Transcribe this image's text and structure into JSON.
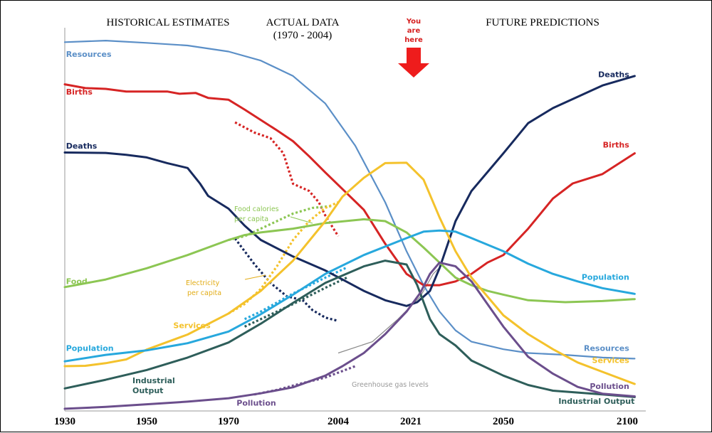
{
  "headers": {
    "historical": "HISTORICAL ESTIMATES",
    "actual_line1": "ACTUAL DATA",
    "actual_line2": "(1970 - 2004)",
    "future": "FUTURE PREDICTIONS",
    "you_are_here": [
      "You",
      "are",
      "here"
    ]
  },
  "colors": {
    "resources": "#5b8fc7",
    "births": "#d62424",
    "deaths": "#172a5e",
    "food": "#8cc653",
    "services": "#f4c22c",
    "population": "#27a8dd",
    "industrial": "#2e5e5a",
    "pollution": "#6b4e8c",
    "ghg": "#8a8a8a",
    "arrow": "#ee1c1c"
  },
  "chart_data": {
    "type": "line",
    "xlim": [
      1930,
      2100
    ],
    "ylim": [
      0,
      100
    ],
    "x_ticks": [
      "1930",
      "1950",
      "1970",
      "2004",
      "2021",
      "2050",
      "2100"
    ],
    "tick_years": [
      1930,
      1950,
      1970,
      2004,
      2021,
      2050,
      2100
    ],
    "you_are_here_year": 2021,
    "series": [
      {
        "key": "resources",
        "name": "Resources",
        "end_name": "Resources",
        "points": [
          [
            1930,
            97.5
          ],
          [
            1940,
            97.9
          ],
          [
            1950,
            97.3
          ],
          [
            1960,
            96.6
          ],
          [
            1970,
            95
          ],
          [
            1980,
            92.6
          ],
          [
            1990,
            88.5
          ],
          [
            2000,
            81.2
          ],
          [
            2008,
            70
          ],
          [
            2015,
            55
          ],
          [
            2020,
            42
          ],
          [
            2025,
            33
          ],
          [
            2030,
            26
          ],
          [
            2035,
            21
          ],
          [
            2040,
            18
          ],
          [
            2050,
            16
          ],
          [
            2060,
            15
          ],
          [
            2075,
            14.5
          ],
          [
            2090,
            13.8
          ],
          [
            2103,
            13.5
          ]
        ]
      },
      {
        "key": "births",
        "name": "Births",
        "end_name": "Births",
        "points": [
          [
            1930,
            86.3
          ],
          [
            1935,
            85.3
          ],
          [
            1940,
            85.1
          ],
          [
            1945,
            84.4
          ],
          [
            1955,
            84.4
          ],
          [
            1958,
            83.8
          ],
          [
            1962,
            84
          ],
          [
            1965,
            82.7
          ],
          [
            1970,
            82.2
          ],
          [
            1975,
            79.6
          ],
          [
            1985,
            74.1
          ],
          [
            1990,
            71.2
          ],
          [
            1995,
            67.2
          ],
          [
            2000,
            62.9
          ],
          [
            2005,
            58.5
          ],
          [
            2010,
            53
          ],
          [
            2015,
            44
          ],
          [
            2020,
            36
          ],
          [
            2025,
            33
          ],
          [
            2030,
            33
          ],
          [
            2035,
            34
          ],
          [
            2040,
            36
          ],
          [
            2045,
            39
          ],
          [
            2050,
            41
          ],
          [
            2055,
            44.5
          ],
          [
            2060,
            48
          ],
          [
            2065,
            52
          ],
          [
            2070,
            56
          ],
          [
            2078,
            60
          ],
          [
            2090,
            62.5
          ],
          [
            2103,
            68
          ]
        ]
      },
      {
        "key": "deaths",
        "name": "Deaths",
        "end_name": "Deaths",
        "points": [
          [
            1930,
            68.2
          ],
          [
            1940,
            68.1
          ],
          [
            1945,
            67.6
          ],
          [
            1950,
            66.9
          ],
          [
            1955,
            65.4
          ],
          [
            1960,
            64.1
          ],
          [
            1963,
            60
          ],
          [
            1965,
            56.7
          ],
          [
            1970,
            53.3
          ],
          [
            1975,
            48.8
          ],
          [
            1980,
            45
          ],
          [
            1990,
            40.6
          ],
          [
            2000,
            36.9
          ],
          [
            2005,
            34.5
          ],
          [
            2010,
            31.5
          ],
          [
            2015,
            29
          ],
          [
            2020,
            27.5
          ],
          [
            2023,
            28.5
          ],
          [
            2027,
            31.5
          ],
          [
            2030,
            37.5
          ],
          [
            2035,
            50
          ],
          [
            2040,
            58
          ],
          [
            2045,
            63
          ],
          [
            2050,
            68
          ],
          [
            2055,
            72
          ],
          [
            2060,
            76
          ],
          [
            2070,
            80
          ],
          [
            2080,
            83
          ],
          [
            2090,
            86
          ],
          [
            2103,
            88.5
          ]
        ]
      },
      {
        "key": "food",
        "name": "Food",
        "end_name": "",
        "points": [
          [
            1930,
            32.5
          ],
          [
            1940,
            34.5
          ],
          [
            1950,
            37.5
          ],
          [
            1960,
            41
          ],
          [
            1970,
            45
          ],
          [
            1975,
            46.3
          ],
          [
            1980,
            47
          ],
          [
            1990,
            48
          ],
          [
            2000,
            49.5
          ],
          [
            2010,
            50.5
          ],
          [
            2015,
            50
          ],
          [
            2020,
            47
          ],
          [
            2025,
            43
          ],
          [
            2030,
            39
          ],
          [
            2035,
            35
          ],
          [
            2040,
            33
          ],
          [
            2045,
            31.5
          ],
          [
            2050,
            30.5
          ],
          [
            2060,
            29
          ],
          [
            2075,
            28.5
          ],
          [
            2090,
            28.8
          ],
          [
            2103,
            29.3
          ]
        ]
      },
      {
        "key": "services",
        "name": "Services",
        "end_name": "Services",
        "points": [
          [
            1930,
            11.5
          ],
          [
            1935,
            11.6
          ],
          [
            1940,
            12.3
          ],
          [
            1945,
            13.3
          ],
          [
            1950,
            15.9
          ],
          [
            1960,
            19.9
          ],
          [
            1970,
            25.5
          ],
          [
            1980,
            31.5
          ],
          [
            1990,
            39.5
          ],
          [
            2000,
            50
          ],
          [
            2005,
            56.5
          ],
          [
            2010,
            61.5
          ],
          [
            2015,
            65.4
          ],
          [
            2020,
            65.5
          ],
          [
            2025,
            61
          ],
          [
            2030,
            51
          ],
          [
            2035,
            42
          ],
          [
            2040,
            35
          ],
          [
            2045,
            30
          ],
          [
            2050,
            25
          ],
          [
            2060,
            20
          ],
          [
            2070,
            16
          ],
          [
            2080,
            12.5
          ],
          [
            2090,
            10
          ],
          [
            2103,
            6.8
          ]
        ]
      },
      {
        "key": "population",
        "name": "Population",
        "end_name": "Population",
        "points": [
          [
            1930,
            12.8
          ],
          [
            1940,
            14.5
          ],
          [
            1950,
            15.7
          ],
          [
            1960,
            17.6
          ],
          [
            1970,
            20.7
          ],
          [
            1980,
            25.3
          ],
          [
            1990,
            30.5
          ],
          [
            2000,
            36
          ],
          [
            2010,
            41
          ],
          [
            2020,
            45.5
          ],
          [
            2025,
            47.2
          ],
          [
            2030,
            47.5
          ],
          [
            2035,
            47.2
          ],
          [
            2040,
            45.5
          ],
          [
            2050,
            42
          ],
          [
            2060,
            38.7
          ],
          [
            2070,
            36
          ],
          [
            2080,
            34
          ],
          [
            2090,
            32.2
          ],
          [
            2103,
            30.7
          ]
        ]
      },
      {
        "key": "industrial",
        "name": "Industrial",
        "end_name": "Industrial Output",
        "points": [
          [
            1930,
            5.6
          ],
          [
            1940,
            7.9
          ],
          [
            1950,
            10.5
          ],
          [
            1960,
            13.8
          ],
          [
            1970,
            17.8
          ],
          [
            1980,
            22.8
          ],
          [
            1990,
            28.3
          ],
          [
            2000,
            33.6
          ],
          [
            2010,
            38
          ],
          [
            2015,
            39.5
          ],
          [
            2020,
            38.5
          ],
          [
            2023,
            33
          ],
          [
            2027,
            24
          ],
          [
            2030,
            20
          ],
          [
            2035,
            17
          ],
          [
            2040,
            13
          ],
          [
            2050,
            9
          ],
          [
            2060,
            6.5
          ],
          [
            2070,
            5
          ],
          [
            2080,
            4.5
          ],
          [
            2090,
            4
          ],
          [
            2103,
            3.3
          ]
        ]
      },
      {
        "key": "pollution",
        "name": "Pollution",
        "end_name": "Pollution",
        "points": [
          [
            1930,
            0.2
          ],
          [
            1940,
            0.7
          ],
          [
            1950,
            1.4
          ],
          [
            1960,
            2.1
          ],
          [
            1970,
            3
          ],
          [
            1980,
            4.3
          ],
          [
            1990,
            5.9
          ],
          [
            2000,
            9
          ],
          [
            2005,
            11.5
          ],
          [
            2010,
            15
          ],
          [
            2015,
            20
          ],
          [
            2020,
            26
          ],
          [
            2024,
            31
          ],
          [
            2027,
            36
          ],
          [
            2030,
            39
          ],
          [
            2035,
            38
          ],
          [
            2040,
            34
          ],
          [
            2045,
            28
          ],
          [
            2050,
            22
          ],
          [
            2055,
            18
          ],
          [
            2060,
            14
          ],
          [
            2070,
            9.5
          ],
          [
            2080,
            6
          ],
          [
            2090,
            4.2
          ],
          [
            2103,
            3.5
          ]
        ]
      }
    ],
    "dotted_series": [
      {
        "key": "births",
        "points": [
          [
            1972,
            76.2
          ],
          [
            1978,
            73.5
          ],
          [
            1983,
            72
          ],
          [
            1987,
            68
          ],
          [
            1990,
            59.9
          ],
          [
            1995,
            58
          ],
          [
            1998,
            55
          ],
          [
            2000,
            51.5
          ],
          [
            2004,
            46
          ]
        ]
      },
      {
        "key": "deaths",
        "points": [
          [
            1972,
            45.4
          ],
          [
            1978,
            38.6
          ],
          [
            1983,
            33.6
          ],
          [
            1988,
            30.1
          ],
          [
            1993,
            29
          ],
          [
            1996,
            26.4
          ],
          [
            2000,
            24.4
          ],
          [
            2004,
            23.5
          ]
        ]
      },
      {
        "key": "food",
        "points": [
          [
            1970,
            45
          ],
          [
            1975,
            46
          ],
          [
            1980,
            48
          ],
          [
            1985,
            50
          ],
          [
            1990,
            52
          ],
          [
            1996,
            53.5
          ],
          [
            2002,
            54
          ]
        ]
      },
      {
        "key": "services",
        "points": [
          [
            1970,
            25.5
          ],
          [
            1975,
            28
          ],
          [
            1980,
            32
          ],
          [
            1985,
            38
          ],
          [
            1990,
            45
          ],
          [
            1995,
            50
          ],
          [
            2000,
            53.5
          ],
          [
            2004,
            55
          ]
        ]
      },
      {
        "key": "population",
        "points": [
          [
            1975,
            24
          ],
          [
            1980,
            26
          ],
          [
            1990,
            30.8
          ],
          [
            2000,
            35
          ],
          [
            2006,
            37.7
          ]
        ]
      },
      {
        "key": "industrial",
        "points": [
          [
            1975,
            22
          ],
          [
            1980,
            24
          ],
          [
            1990,
            28
          ],
          [
            2000,
            32.3
          ],
          [
            2006,
            35
          ]
        ]
      },
      {
        "key": "pollution",
        "points": [
          [
            1978,
            4
          ],
          [
            1985,
            5.2
          ],
          [
            1992,
            6.8
          ],
          [
            2000,
            8.5
          ],
          [
            2008,
            11.5
          ]
        ]
      }
    ],
    "labels": [
      {
        "key": "resources",
        "text": "Resources",
        "year": 1930.3,
        "y": 93.6,
        "anchor": "start",
        "cls": "lbl"
      },
      {
        "key": "births",
        "text": "Births",
        "year": 1930.3,
        "y": 83.6,
        "anchor": "start",
        "cls": "lbl"
      },
      {
        "key": "deaths",
        "text": "Deaths",
        "year": 1930.3,
        "y": 69.2,
        "anchor": "start",
        "cls": "lbl"
      },
      {
        "key": "food",
        "text": "Food",
        "year": 1930.3,
        "y": 33.3,
        "anchor": "start",
        "cls": "lbl"
      },
      {
        "key": "services",
        "text": "Services",
        "year": 1956.5,
        "y": 21.6,
        "anchor": "start",
        "cls": "lbl"
      },
      {
        "key": "population",
        "text": "Population",
        "year": 1930.3,
        "y": 15.6,
        "anchor": "start",
        "cls": "lbl"
      },
      {
        "key": "pollution",
        "text": "Pollution",
        "year": 1972.5,
        "y": 1,
        "anchor": "start",
        "cls": "lbl"
      },
      {
        "key": "deaths",
        "text": "Deaths",
        "year": 2100.8,
        "y": 88.2,
        "anchor": "end",
        "cls": "lbl"
      },
      {
        "key": "births",
        "text": "Births",
        "year": 2100.8,
        "y": 69.5,
        "anchor": "end",
        "cls": "lbl"
      },
      {
        "key": "population",
        "text": "Population",
        "year": 2100.8,
        "y": 34.4,
        "anchor": "end",
        "cls": "lbl"
      },
      {
        "key": "resources",
        "text": "Resources",
        "year": 2100.8,
        "y": 15.6,
        "anchor": "end",
        "cls": "lbl"
      },
      {
        "key": "services",
        "text": "Services",
        "year": 2100.8,
        "y": 12.4,
        "anchor": "end",
        "cls": "lbl"
      },
      {
        "key": "pollution",
        "text": "Pollution",
        "year": 2100.8,
        "y": 5.5,
        "anchor": "end",
        "cls": "lbl"
      },
      {
        "key": "industrial",
        "text": "Industrial Output",
        "year": 2103,
        "y": 1.5,
        "anchor": "end",
        "cls": "lbl"
      }
    ],
    "annotations": {
      "industrial_left": [
        "Industrial",
        "Output"
      ],
      "food_calories": [
        "Food calories",
        "per capita"
      ],
      "electricity": [
        "Electricity",
        "per capita"
      ],
      "ghg": "Greenhouse gas levels"
    }
  }
}
